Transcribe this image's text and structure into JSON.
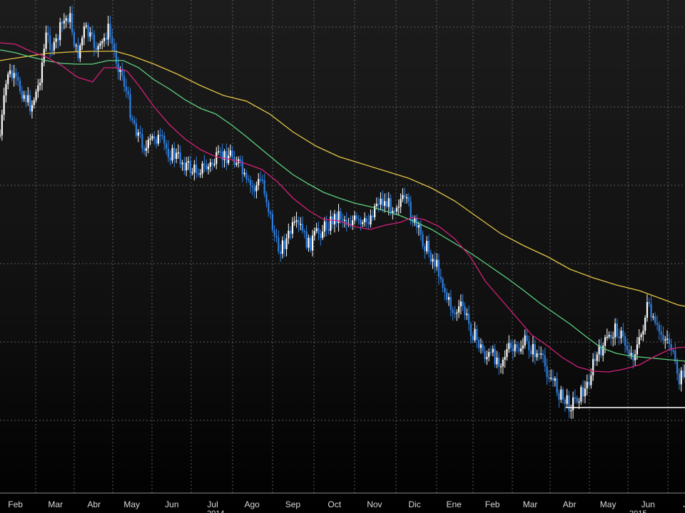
{
  "chart_data": {
    "type": "candlestick",
    "title": "",
    "xlabel": "",
    "ylabel": "",
    "ylim": [
      0,
      660
    ],
    "grid": true,
    "colors": {
      "background": "#111111",
      "grid": "#5a5a5a",
      "up_candle": "#ffffff",
      "down_candle": "#2f7fe0",
      "ma_fast": "#d4207a",
      "ma_mid": "#5fd07f",
      "ma_slow": "#e3c445",
      "support": "#ffffff"
    },
    "x_ticks": [
      {
        "label": "Feb",
        "t": 2
      },
      {
        "label": "Mar",
        "t": 7.2
      },
      {
        "label": "Abr",
        "t": 12.2
      },
      {
        "label": "May",
        "t": 17.1
      },
      {
        "label": "Jun",
        "t": 22.3
      },
      {
        "label": "Jul",
        "t": 27.6
      },
      {
        "label": "Ago",
        "t": 32.7
      },
      {
        "label": "Sep",
        "t": 38
      },
      {
        "label": "Oct",
        "t": 43.4
      },
      {
        "label": "Nov",
        "t": 48.6
      },
      {
        "label": "Dic",
        "t": 53.8
      },
      {
        "label": "Ene",
        "t": 58.9
      },
      {
        "label": "Feb",
        "t": 63.9
      },
      {
        "label": "Mar",
        "t": 68.8
      },
      {
        "label": "Abr",
        "t": 73.9
      },
      {
        "label": "May",
        "t": 78.9
      },
      {
        "label": "Jun",
        "t": 84.1
      },
      {
        "label": "J",
        "t": 88.9
      }
    ],
    "year_labels": [
      {
        "label": "2014",
        "t": 28
      },
      {
        "label": "2015",
        "t": 82.8
      }
    ],
    "price_series": [
      [
        0,
        190
      ],
      [
        1,
        100
      ],
      [
        3,
        130
      ],
      [
        4,
        150
      ],
      [
        5,
        120
      ],
      [
        6,
        50
      ],
      [
        7,
        70
      ],
      [
        8,
        35
      ],
      [
        9,
        20
      ],
      [
        10,
        80
      ],
      [
        11,
        40
      ],
      [
        12,
        60
      ],
      [
        13,
        70
      ],
      [
        14,
        40
      ],
      [
        15,
        80
      ],
      [
        16,
        110
      ],
      [
        17,
        160
      ],
      [
        18,
        190
      ],
      [
        19,
        210
      ],
      [
        20,
        190
      ],
      [
        21,
        200
      ],
      [
        22,
        215
      ],
      [
        23,
        220
      ],
      [
        24,
        230
      ],
      [
        25,
        240
      ],
      [
        26,
        235
      ],
      [
        27,
        235
      ],
      [
        28,
        225
      ],
      [
        29,
        220
      ],
      [
        30,
        215
      ],
      [
        31,
        230
      ],
      [
        32,
        260
      ],
      [
        33,
        265
      ],
      [
        34,
        250
      ],
      [
        35,
        300
      ],
      [
        36,
        350
      ],
      [
        37,
        340
      ],
      [
        38,
        320
      ],
      [
        39,
        320
      ],
      [
        40,
        345
      ],
      [
        41,
        330
      ],
      [
        42,
        320
      ],
      [
        43,
        310
      ],
      [
        44,
        300
      ],
      [
        45,
        310
      ],
      [
        46,
        310
      ],
      [
        47,
        320
      ],
      [
        48,
        305
      ],
      [
        49,
        280
      ],
      [
        50,
        285
      ],
      [
        51,
        290
      ],
      [
        52,
        280
      ],
      [
        53,
        290
      ],
      [
        54,
        320
      ],
      [
        55,
        340
      ],
      [
        56,
        360
      ],
      [
        57,
        380
      ],
      [
        58,
        420
      ],
      [
        59,
        440
      ],
      [
        60,
        430
      ],
      [
        61,
        460
      ],
      [
        62,
        480
      ],
      [
        63,
        500
      ],
      [
        64,
        500
      ],
      [
        65,
        505
      ],
      [
        66,
        490
      ],
      [
        67,
        495
      ],
      [
        68,
        480
      ],
      [
        69,
        490
      ],
      [
        70,
        500
      ],
      [
        71,
        520
      ],
      [
        72,
        540
      ],
      [
        73,
        560
      ],
      [
        74,
        568
      ],
      [
        75,
        555
      ],
      [
        76,
        548
      ],
      [
        77,
        510
      ],
      [
        78,
        490
      ],
      [
        79,
        475
      ],
      [
        80,
        460
      ],
      [
        81,
        480
      ],
      [
        82,
        500
      ],
      [
        83,
        480
      ],
      [
        84,
        430
      ],
      [
        85,
        460
      ],
      [
        86,
        470
      ],
      [
        87,
        480
      ],
      [
        88,
        540
      ],
      [
        89,
        510
      ],
      [
        90,
        480
      ]
    ],
    "ma_fast": [
      [
        0,
        60
      ],
      [
        2,
        62
      ],
      [
        4,
        72
      ],
      [
        6,
        80
      ],
      [
        8,
        92
      ],
      [
        10,
        108
      ],
      [
        12,
        115
      ],
      [
        13.5,
        95
      ],
      [
        15,
        95
      ],
      [
        16.5,
        100
      ],
      [
        18,
        120
      ],
      [
        20,
        150
      ],
      [
        22,
        175
      ],
      [
        24,
        195
      ],
      [
        26,
        210
      ],
      [
        28,
        220
      ],
      [
        30,
        224
      ],
      [
        32,
        230
      ],
      [
        34,
        238
      ],
      [
        36,
        255
      ],
      [
        38,
        278
      ],
      [
        40,
        295
      ],
      [
        42,
        308
      ],
      [
        44,
        310
      ],
      [
        46,
        318
      ],
      [
        48,
        322
      ],
      [
        50,
        316
      ],
      [
        52,
        312
      ],
      [
        53.5,
        305
      ],
      [
        55,
        308
      ],
      [
        57,
        318
      ],
      [
        59,
        335
      ],
      [
        61,
        360
      ],
      [
        63,
        395
      ],
      [
        65,
        420
      ],
      [
        67,
        445
      ],
      [
        69,
        470
      ],
      [
        71,
        485
      ],
      [
        73,
        502
      ],
      [
        75,
        515
      ],
      [
        77,
        521
      ],
      [
        79,
        522
      ],
      [
        81,
        518
      ],
      [
        83,
        512
      ],
      [
        85,
        500
      ],
      [
        87,
        490
      ],
      [
        88,
        488
      ],
      [
        90,
        486
      ]
    ],
    "ma_mid": [
      [
        0,
        70
      ],
      [
        2,
        74
      ],
      [
        4,
        80
      ],
      [
        6,
        85
      ],
      [
        8,
        89
      ],
      [
        10,
        90
      ],
      [
        12,
        90
      ],
      [
        14,
        85
      ],
      [
        16,
        85
      ],
      [
        18,
        95
      ],
      [
        20,
        112
      ],
      [
        22,
        125
      ],
      [
        24,
        140
      ],
      [
        26,
        152
      ],
      [
        28,
        160
      ],
      [
        30,
        175
      ],
      [
        32,
        192
      ],
      [
        34,
        210
      ],
      [
        36,
        228
      ],
      [
        38,
        245
      ],
      [
        40,
        258
      ],
      [
        42,
        270
      ],
      [
        44,
        278
      ],
      [
        46,
        285
      ],
      [
        48,
        290
      ],
      [
        50,
        296
      ],
      [
        52,
        303
      ],
      [
        54,
        312
      ],
      [
        56,
        322
      ],
      [
        58,
        335
      ],
      [
        60,
        348
      ],
      [
        62,
        362
      ],
      [
        64,
        377
      ],
      [
        66,
        392
      ],
      [
        68,
        408
      ],
      [
        70,
        425
      ],
      [
        72,
        440
      ],
      [
        74,
        455
      ],
      [
        76,
        472
      ],
      [
        78,
        488
      ],
      [
        80,
        496
      ],
      [
        82,
        500
      ],
      [
        84,
        502
      ],
      [
        86,
        504
      ],
      [
        88,
        506
      ],
      [
        90,
        508
      ]
    ],
    "ma_slow": [
      [
        0,
        85
      ],
      [
        3,
        80
      ],
      [
        6,
        75
      ],
      [
        9,
        73
      ],
      [
        12,
        72
      ],
      [
        15,
        72
      ],
      [
        17,
        78
      ],
      [
        20,
        90
      ],
      [
        23,
        104
      ],
      [
        26,
        120
      ],
      [
        29,
        134
      ],
      [
        32,
        142
      ],
      [
        35,
        160
      ],
      [
        38,
        185
      ],
      [
        41,
        205
      ],
      [
        44,
        220
      ],
      [
        47,
        230
      ],
      [
        50,
        240
      ],
      [
        53,
        250
      ],
      [
        56,
        264
      ],
      [
        59,
        282
      ],
      [
        62,
        305
      ],
      [
        65,
        328
      ],
      [
        68,
        345
      ],
      [
        71,
        360
      ],
      [
        74,
        378
      ],
      [
        77,
        390
      ],
      [
        80,
        400
      ],
      [
        83,
        408
      ],
      [
        86,
        420
      ],
      [
        88,
        428
      ],
      [
        90,
        432
      ]
    ],
    "support_line": {
      "y": 572,
      "t_start": 73.4,
      "t_end": 90
    }
  }
}
